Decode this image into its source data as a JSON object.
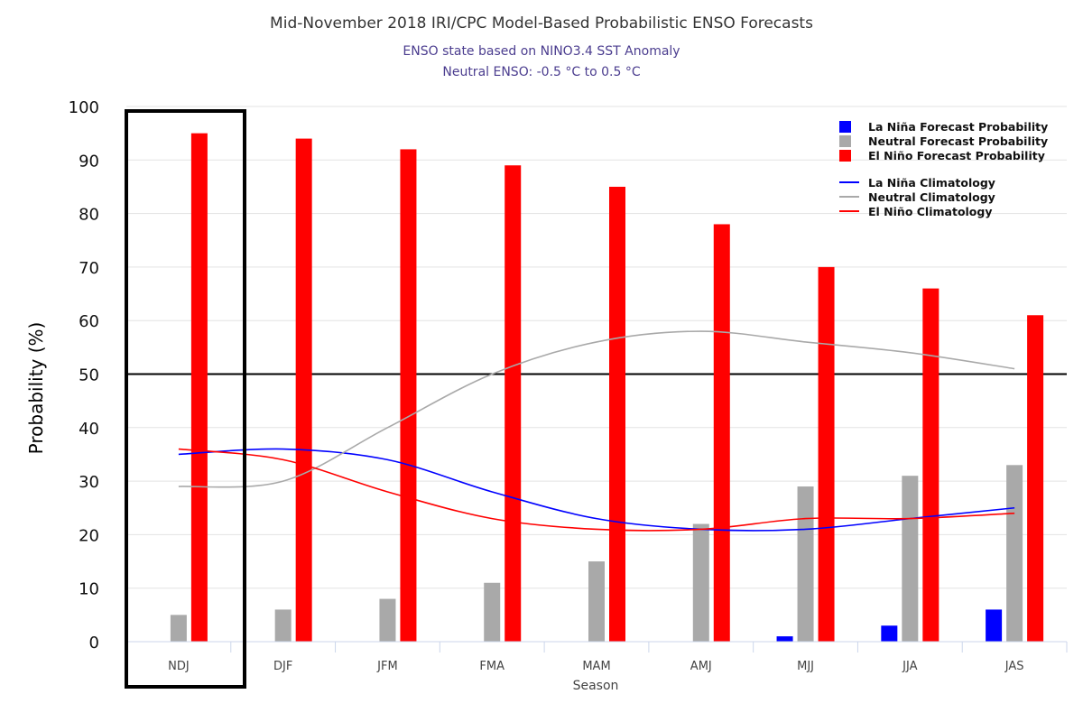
{
  "title": "Mid-November 2018 IRI/CPC Model-Based Probabilistic ENSO Forecasts",
  "subtitle1": "ENSO state based on NINO3.4 SST Anomaly",
  "subtitle2": "Neutral ENSO: -0.5 °C to 0.5 °C",
  "colors": {
    "la_nina_bar": "#0000ff",
    "neutral_bar": "#a9a9a9",
    "el_nino_bar": "#ff0000",
    "la_nina_line": "#0000ff",
    "neutral_line": "#a9a9a9",
    "el_nino_line": "#ff0000"
  },
  "chart_data": {
    "type": "bar",
    "title": "Mid-November 2018 IRI/CPC Model-Based Probabilistic ENSO Forecasts",
    "xlabel": "Season",
    "ylabel": "Probability (%)",
    "ylim": [
      0,
      100
    ],
    "yticks": [
      0,
      10,
      20,
      30,
      40,
      50,
      60,
      70,
      80,
      90,
      100
    ],
    "grid": true,
    "legend_position": "top-right",
    "reference_line": 50,
    "highlighted_category": "NDJ",
    "categories": [
      "NDJ",
      "DJF",
      "JFM",
      "FMA",
      "MAM",
      "AMJ",
      "MJJ",
      "JJA",
      "JAS"
    ],
    "series": [
      {
        "name": "La Niña Forecast Probability",
        "kind": "bar",
        "values": [
          0,
          0,
          0,
          0,
          0,
          0,
          1,
          3,
          6
        ]
      },
      {
        "name": "Neutral Forecast Probability",
        "kind": "bar",
        "values": [
          5,
          6,
          8,
          11,
          15,
          22,
          29,
          31,
          33
        ]
      },
      {
        "name": "El Niño Forecast Probability",
        "kind": "bar",
        "values": [
          95,
          94,
          92,
          89,
          85,
          78,
          70,
          66,
          61
        ]
      },
      {
        "name": "La Niña Climatology",
        "kind": "line",
        "values": [
          35,
          36,
          34,
          28,
          23,
          21,
          21,
          23,
          25
        ]
      },
      {
        "name": "Neutral Climatology",
        "kind": "line",
        "values": [
          29,
          30,
          40,
          50,
          56,
          58,
          56,
          54,
          51
        ]
      },
      {
        "name": "El Niño Climatology",
        "kind": "line",
        "values": [
          36,
          34,
          28,
          23,
          21,
          21,
          23,
          23,
          24
        ]
      }
    ]
  }
}
